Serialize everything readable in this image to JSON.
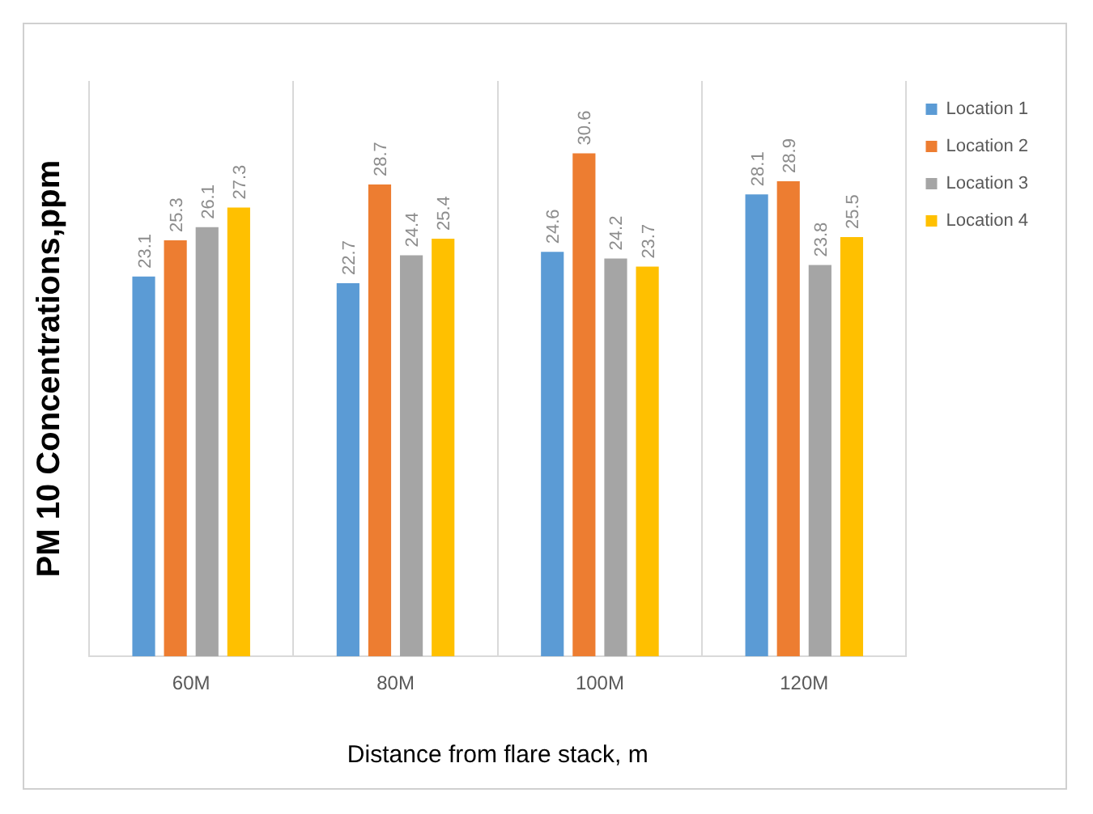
{
  "chart_data": {
    "type": "bar",
    "ylabel": "PM 10 Concentrations,ppm",
    "xlabel": "Distance from flare stack, m",
    "categories": [
      "60M",
      "80M",
      "100M",
      "120M"
    ],
    "series": [
      {
        "name": "Location 1",
        "color": "#5b9bd5",
        "values": [
          23.1,
          22.7,
          24.6,
          28.1
        ]
      },
      {
        "name": "Location 2",
        "color": "#ed7d31",
        "values": [
          25.3,
          28.7,
          30.6,
          28.9
        ]
      },
      {
        "name": "Location 3",
        "color": "#a5a5a5",
        "values": [
          26.1,
          24.4,
          24.2,
          23.8
        ]
      },
      {
        "name": "Location 4",
        "color": "#ffc000",
        "values": [
          27.3,
          25.4,
          23.7,
          25.5
        ]
      }
    ],
    "data_labels": true,
    "grid": "x",
    "legend": "right"
  }
}
